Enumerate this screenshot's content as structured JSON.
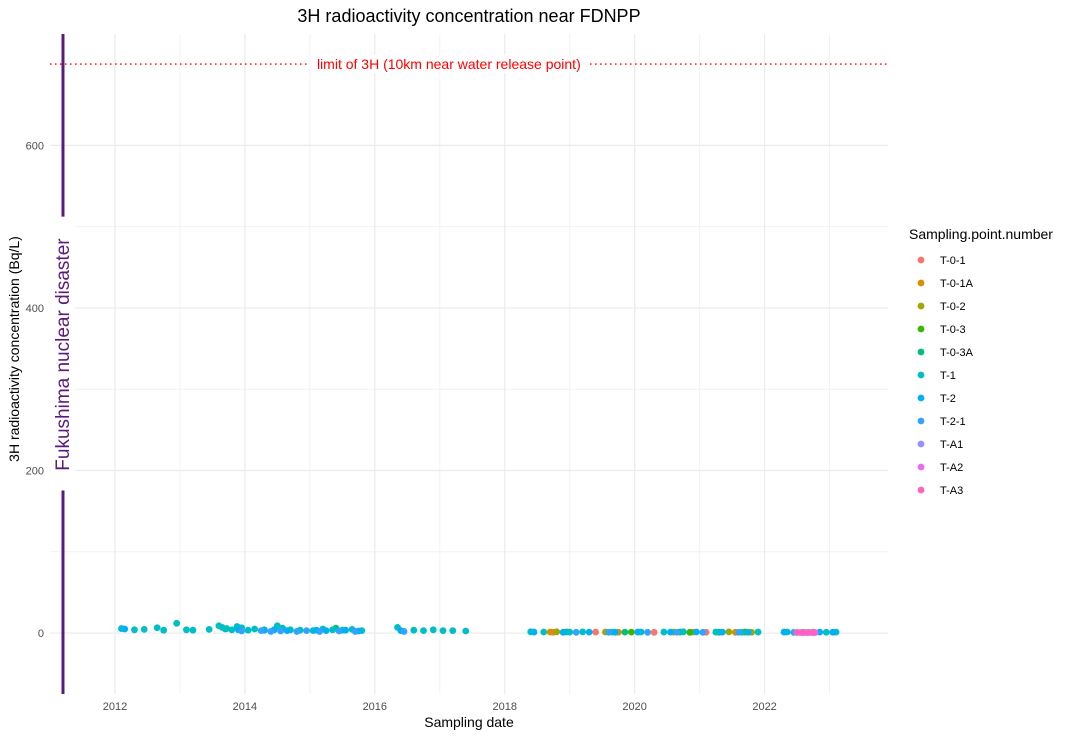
{
  "chart_data": {
    "type": "scatter",
    "title": "3H radioactivity concentration near FDNPP",
    "xlabel": "Sampling date",
    "ylabel": "3H radioactivity concentration (Bq/L)",
    "x_ticks": [
      "2012",
      "2014",
      "2016",
      "2018",
      "2020",
      "2022"
    ],
    "y_ticks": [
      0,
      200,
      400,
      600
    ],
    "xlim": [
      2011.0,
      2023.9
    ],
    "ylim": [
      -75,
      737
    ],
    "grid": true,
    "legend_position": "right",
    "legend_title": "Sampling.point.number",
    "hline": {
      "y": 700,
      "label": "limit of 3H (10km near water release point)",
      "color": "#ff0000",
      "style": "dotted"
    },
    "vline": {
      "x": 2011.2,
      "label": "Fukushima nuclear disaster",
      "color": "#5b1a7a"
    },
    "series": [
      {
        "name": "T-0-1",
        "color": "#f8766d",
        "points": [
          [
            2018.75,
            1.0
          ],
          [
            2019.4,
            1.2
          ],
          [
            2020.3,
            0.9
          ],
          [
            2021.1,
            1.0
          ]
        ]
      },
      {
        "name": "T-0-1A",
        "color": "#d89000",
        "points": [
          [
            2018.7,
            1.2
          ],
          [
            2019.75,
            1.0
          ],
          [
            2020.9,
            1.1
          ],
          [
            2021.55,
            0.9
          ]
        ]
      },
      {
        "name": "T-0-2",
        "color": "#a3a500",
        "points": [
          [
            2018.8,
            1.5
          ],
          [
            2019.55,
            1.3
          ],
          [
            2020.6,
            1.2
          ],
          [
            2021.45,
            1.4
          ],
          [
            2021.8,
            1.0
          ]
        ]
      },
      {
        "name": "T-0-3",
        "color": "#39b600",
        "points": [
          [
            2018.9,
            1.0
          ],
          [
            2019.95,
            1.1
          ],
          [
            2020.85,
            0.9
          ],
          [
            2021.7,
            1.2
          ]
        ]
      },
      {
        "name": "T-0-3A",
        "color": "#00bf7d",
        "points": [
          [
            2013.7,
            5.0
          ],
          [
            2014.45,
            4.0
          ],
          [
            2015.4,
            6.0
          ],
          [
            2018.95,
            1.3
          ],
          [
            2019.85,
            1.1
          ],
          [
            2020.7,
            1.2
          ],
          [
            2021.3,
            1.0
          ]
        ]
      },
      {
        "name": "T-1",
        "color": "#00bfc4",
        "points": [
          [
            2012.1,
            5.5
          ],
          [
            2012.3,
            4.0
          ],
          [
            2012.45,
            4.5
          ],
          [
            2012.65,
            6.5
          ],
          [
            2012.75,
            3.5
          ],
          [
            2012.95,
            12.0
          ],
          [
            2013.1,
            4.0
          ],
          [
            2013.2,
            3.5
          ],
          [
            2013.45,
            4.5
          ],
          [
            2013.6,
            9.0
          ],
          [
            2013.65,
            7.0
          ],
          [
            2013.72,
            5.5
          ],
          [
            2013.8,
            4.0
          ],
          [
            2013.88,
            8.0
          ],
          [
            2013.95,
            6.5
          ],
          [
            2014.05,
            3.5
          ],
          [
            2014.15,
            5.0
          ],
          [
            2014.3,
            4.0
          ],
          [
            2014.5,
            9.0
          ],
          [
            2014.58,
            6.0
          ],
          [
            2014.7,
            4.0
          ],
          [
            2014.85,
            3.5
          ],
          [
            2015.05,
            3.0
          ],
          [
            2015.2,
            5.0
          ],
          [
            2015.35,
            4.0
          ],
          [
            2015.5,
            3.5
          ],
          [
            2015.65,
            4.5
          ],
          [
            2015.8,
            3.0
          ],
          [
            2016.35,
            7.0
          ],
          [
            2016.6,
            3.5
          ],
          [
            2016.75,
            3.0
          ],
          [
            2016.9,
            4.0
          ],
          [
            2017.05,
            3.0
          ],
          [
            2017.2,
            3.0
          ],
          [
            2017.4,
            2.5
          ],
          [
            2018.4,
            1.5
          ],
          [
            2018.6,
            1.3
          ],
          [
            2019.0,
            1.2
          ],
          [
            2019.2,
            1.4
          ],
          [
            2019.65,
            1.1
          ],
          [
            2020.1,
            1.3
          ],
          [
            2020.45,
            1.2
          ],
          [
            2020.75,
            1.5
          ],
          [
            2021.25,
            1.2
          ],
          [
            2021.65,
            1.0
          ],
          [
            2021.9,
            1.2
          ],
          [
            2022.35,
            1.3
          ],
          [
            2022.75,
            1.1
          ],
          [
            2022.95,
            1.0
          ],
          [
            2023.1,
            1.1
          ]
        ]
      },
      {
        "name": "T-2",
        "color": "#00b0f6",
        "points": [
          [
            2012.15,
            5.0
          ],
          [
            2013.9,
            4.0
          ],
          [
            2014.3,
            3.5
          ],
          [
            2014.45,
            4.0
          ],
          [
            2014.65,
            3.0
          ],
          [
            2015.1,
            3.5
          ],
          [
            2015.25,
            3.0
          ],
          [
            2015.55,
            3.5
          ],
          [
            2015.75,
            2.5
          ],
          [
            2016.4,
            3.0
          ],
          [
            2018.45,
            1.2
          ],
          [
            2018.9,
            1.0
          ],
          [
            2019.3,
            1.1
          ],
          [
            2019.7,
            1.0
          ],
          [
            2020.05,
            1.2
          ],
          [
            2020.55,
            1.1
          ],
          [
            2020.95,
            1.3
          ],
          [
            2021.35,
            1.1
          ],
          [
            2021.75,
            1.0
          ],
          [
            2022.3,
            1.2
          ],
          [
            2022.6,
            1.0
          ],
          [
            2022.85,
            1.1
          ],
          [
            2023.05,
            1.0
          ]
        ]
      },
      {
        "name": "T-2-1",
        "color": "#35a2ff",
        "points": [
          [
            2013.95,
            2.5
          ],
          [
            2014.25,
            3.0
          ],
          [
            2014.4,
            2.0
          ],
          [
            2014.55,
            2.5
          ],
          [
            2014.8,
            2.0
          ],
          [
            2014.95,
            3.0
          ],
          [
            2015.15,
            2.0
          ],
          [
            2015.45,
            2.5
          ],
          [
            2015.7,
            2.0
          ],
          [
            2016.45,
            2.0
          ],
          [
            2019.1,
            0.9
          ],
          [
            2019.6,
            1.0
          ],
          [
            2020.2,
            0.9
          ],
          [
            2020.65,
            1.0
          ],
          [
            2021.05,
            0.9
          ],
          [
            2021.6,
            1.0
          ],
          [
            2022.45,
            0.8
          ]
        ]
      },
      {
        "name": "T-A1",
        "color": "#9590ff",
        "points": [
          [
            2022.5,
            0.7
          ],
          [
            2022.6,
            0.6
          ],
          [
            2022.7,
            0.7
          ]
        ]
      },
      {
        "name": "T-A2",
        "color": "#e76bf3",
        "points": [
          [
            2022.55,
            0.7
          ],
          [
            2022.65,
            0.6
          ],
          [
            2022.78,
            0.7
          ]
        ]
      },
      {
        "name": "T-A3",
        "color": "#ff62bc",
        "points": [
          [
            2022.5,
            0.8
          ],
          [
            2022.58,
            0.7
          ],
          [
            2022.68,
            0.8
          ],
          [
            2022.75,
            0.6
          ]
        ]
      }
    ]
  }
}
